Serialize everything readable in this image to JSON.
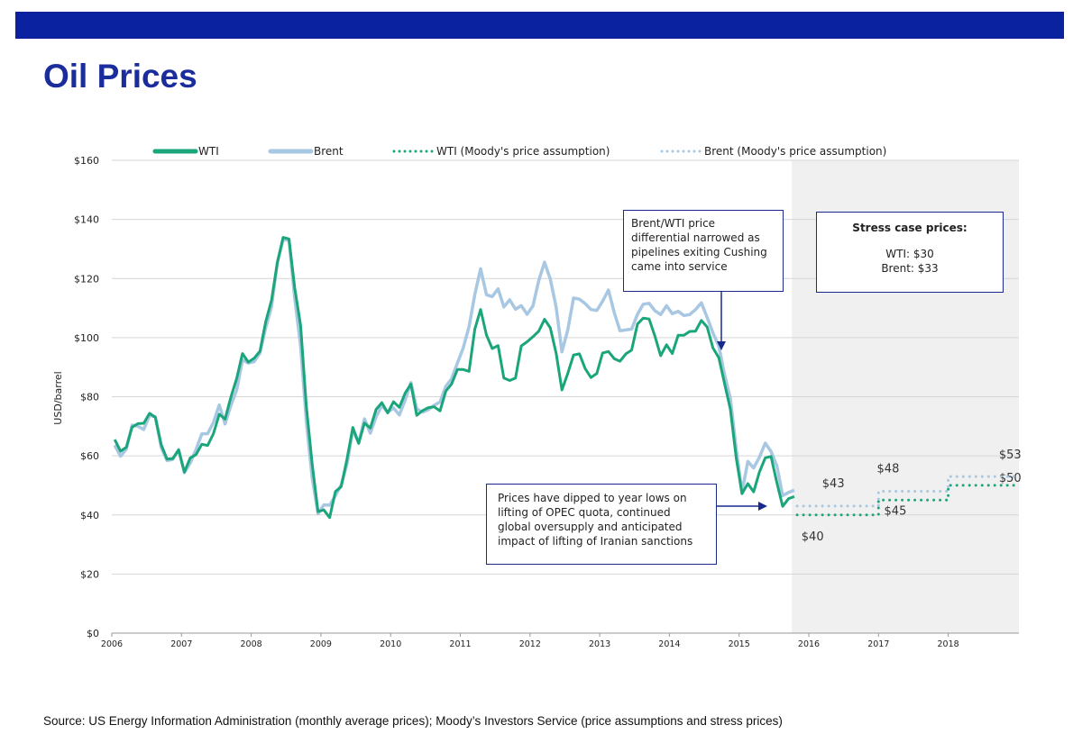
{
  "header": {
    "title": "Oil Prices"
  },
  "source": "Source: US Energy Information Administration (monthly average prices); Moody’s Investors Service (price assumptions and stress prices)",
  "colors": {
    "wti": "#1aa57a",
    "brent": "#a7c7e3",
    "accent": "#0b22a0",
    "shade": "#f0f0f0"
  },
  "chart_data": {
    "type": "line",
    "ylabel": "USD/barrel",
    "ylim": [
      0,
      160
    ],
    "y_ticks": [
      "$0",
      "$20",
      "$40",
      "$60",
      "$80",
      "$100",
      "$120",
      "$140",
      "$160"
    ],
    "y_tick_values": [
      0,
      20,
      40,
      60,
      80,
      100,
      120,
      140,
      160
    ],
    "x_ticks": [
      "2006",
      "2007",
      "2008",
      "2009",
      "2010",
      "2011",
      "2012",
      "2013",
      "2014",
      "2015",
      "2016",
      "2017",
      "2018"
    ],
    "xlim": [
      "2006-01",
      "2018-12"
    ],
    "grid": "horizontal",
    "legend_position": "top",
    "shaded_region": {
      "from": "2015-11",
      "to": "2018-12"
    },
    "dates": [
      "2006-01",
      "2006-02",
      "2006-03",
      "2006-04",
      "2006-05",
      "2006-06",
      "2006-07",
      "2006-08",
      "2006-09",
      "2006-10",
      "2006-11",
      "2006-12",
      "2007-01",
      "2007-02",
      "2007-03",
      "2007-04",
      "2007-05",
      "2007-06",
      "2007-07",
      "2007-08",
      "2007-09",
      "2007-10",
      "2007-11",
      "2007-12",
      "2008-01",
      "2008-02",
      "2008-03",
      "2008-04",
      "2008-05",
      "2008-06",
      "2008-07",
      "2008-08",
      "2008-09",
      "2008-10",
      "2008-11",
      "2008-12",
      "2009-01",
      "2009-02",
      "2009-03",
      "2009-04",
      "2009-05",
      "2009-06",
      "2009-07",
      "2009-08",
      "2009-09",
      "2009-10",
      "2009-11",
      "2009-12",
      "2010-01",
      "2010-02",
      "2010-03",
      "2010-04",
      "2010-05",
      "2010-06",
      "2010-07",
      "2010-08",
      "2010-09",
      "2010-10",
      "2010-11",
      "2010-12",
      "2011-01",
      "2011-02",
      "2011-03",
      "2011-04",
      "2011-05",
      "2011-06",
      "2011-07",
      "2011-08",
      "2011-09",
      "2011-10",
      "2011-11",
      "2011-12",
      "2012-01",
      "2012-02",
      "2012-03",
      "2012-04",
      "2012-05",
      "2012-06",
      "2012-07",
      "2012-08",
      "2012-09",
      "2012-10",
      "2012-11",
      "2012-12",
      "2013-01",
      "2013-02",
      "2013-03",
      "2013-04",
      "2013-05",
      "2013-06",
      "2013-07",
      "2013-08",
      "2013-09",
      "2013-10",
      "2013-11",
      "2013-12",
      "2014-01",
      "2014-02",
      "2014-03",
      "2014-04",
      "2014-05",
      "2014-06",
      "2014-07",
      "2014-08",
      "2014-09",
      "2014-10",
      "2014-11",
      "2014-12",
      "2015-01",
      "2015-02",
      "2015-03",
      "2015-04",
      "2015-05",
      "2015-06",
      "2015-07",
      "2015-08",
      "2015-09",
      "2015-10"
    ],
    "series": [
      {
        "name": "WTI",
        "color": "#1aa57a",
        "values": [
          65.5,
          61.6,
          62.9,
          69.7,
          70.9,
          71,
          74.4,
          73,
          63.8,
          58.9,
          59.1,
          62,
          54.5,
          59.3,
          60.4,
          63.9,
          63.5,
          67.5,
          74.1,
          72.4,
          79.9,
          86.2,
          94.6,
          91.7,
          93,
          95.4,
          105.4,
          112.6,
          125.4,
          133.9,
          133.4,
          116.7,
          104.1,
          76.6,
          57.3,
          41.1,
          41.7,
          39.1,
          47.9,
          49.6,
          59,
          69.6,
          64.2,
          71.1,
          69.4,
          75.7,
          78,
          74.5,
          78.3,
          76.4,
          81.2,
          84.3,
          73.7,
          75.3,
          76.3,
          76.6,
          75.2,
          81.9,
          84.3,
          89.2,
          89.2,
          88.6,
          102.9,
          109.5,
          100.9,
          96.3,
          97.3,
          86.3,
          85.5,
          86.3,
          97.2,
          98.6,
          100.3,
          102.2,
          106.2,
          103.3,
          94.7,
          82.3,
          87.9,
          94.1,
          94.5,
          89.5,
          86.5,
          87.9,
          94.8,
          95.3,
          92.9,
          92,
          94.5,
          95.8,
          104.6,
          106.6,
          106.3,
          100.5,
          93.9,
          97.6,
          94.6,
          100.8,
          100.8,
          102.1,
          102.2,
          105.8,
          103.6,
          96.5,
          93.2,
          84.4,
          75.8,
          59.3,
          47.2,
          50.6,
          47.8,
          54.5,
          59.3,
          59.8,
          50.9,
          42.9,
          45.5,
          46.2
        ]
      },
      {
        "name": "Brent",
        "color": "#a7c7e3",
        "values": [
          63.6,
          59.9,
          62.3,
          70.4,
          70,
          68.9,
          73.7,
          73.2,
          62.8,
          58.4,
          58.8,
          62.1,
          54.3,
          57.6,
          62.1,
          67.4,
          67.5,
          71.3,
          77.2,
          70.8,
          77.1,
          82.3,
          92.5,
          91.4,
          91.9,
          94.8,
          103.3,
          110.4,
          125.4,
          133.1,
          133,
          113.2,
          97.2,
          71.6,
          52.5,
          40.4,
          43.4,
          43.3,
          46.5,
          50.2,
          57.3,
          68.6,
          64.4,
          72.5,
          67.7,
          73.2,
          77,
          74.7,
          76.2,
          73.8,
          78.8,
          84.8,
          75.9,
          74.8,
          75.6,
          77.1,
          78.2,
          83.5,
          86.1,
          91.4,
          96.5,
          103.7,
          114.6,
          123.3,
          114.5,
          113.9,
          116.5,
          110.4,
          112.8,
          109.6,
          110.8,
          107.9,
          110.7,
          119.3,
          125.5,
          119.8,
          110.3,
          95.2,
          102.6,
          113.4,
          113,
          111.5,
          109.5,
          109.2,
          112.3,
          116.1,
          108.5,
          102.3,
          102.6,
          102.9,
          107.9,
          111.3,
          111.6,
          109.1,
          107.8,
          110.8,
          108.1,
          108.9,
          107.5,
          107.8,
          109.5,
          111.8,
          106.8,
          101.6,
          97.1,
          87.4,
          79.4,
          62.3,
          47.8,
          58.1,
          55.9,
          59.5,
          64.3,
          61.5,
          56.6,
          46.5,
          47.6,
          48.4
        ]
      }
    ],
    "assumptions": [
      {
        "name": "WTI (Moody's price assumption)",
        "color": "#1aa57a",
        "periods": [
          {
            "from": "2015-11",
            "to": "2016-12",
            "value": 40,
            "label": "$40"
          },
          {
            "from": "2017-01",
            "to": "2017-12",
            "value": 45,
            "label": "$45"
          },
          {
            "from": "2018-01",
            "to": "2018-12",
            "value": 50,
            "label": "$50"
          }
        ]
      },
      {
        "name": "Brent (Moody's price assumption)",
        "color": "#a7c7e3",
        "periods": [
          {
            "from": "2015-11",
            "to": "2016-12",
            "value": 43,
            "label": "$43"
          },
          {
            "from": "2017-01",
            "to": "2017-12",
            "value": 48,
            "label": "$48"
          },
          {
            "from": "2018-01",
            "to": "2018-12",
            "value": 53,
            "label": "$53"
          }
        ]
      }
    ],
    "annotations": {
      "cushing": [
        "Brent/WTI price",
        "differential narrowed as",
        "pipelines exiting Cushing",
        "came into service"
      ],
      "stress_title": "Stress case prices:",
      "stress_wti": "WTI: $30",
      "stress_brent": "Brent: $33",
      "opec": [
        "Prices have dipped to year lows on",
        "lifting of OPEC quota, continued",
        "global oversupply and anticipated",
        "impact of lifting of Iranian sanctions"
      ]
    }
  }
}
